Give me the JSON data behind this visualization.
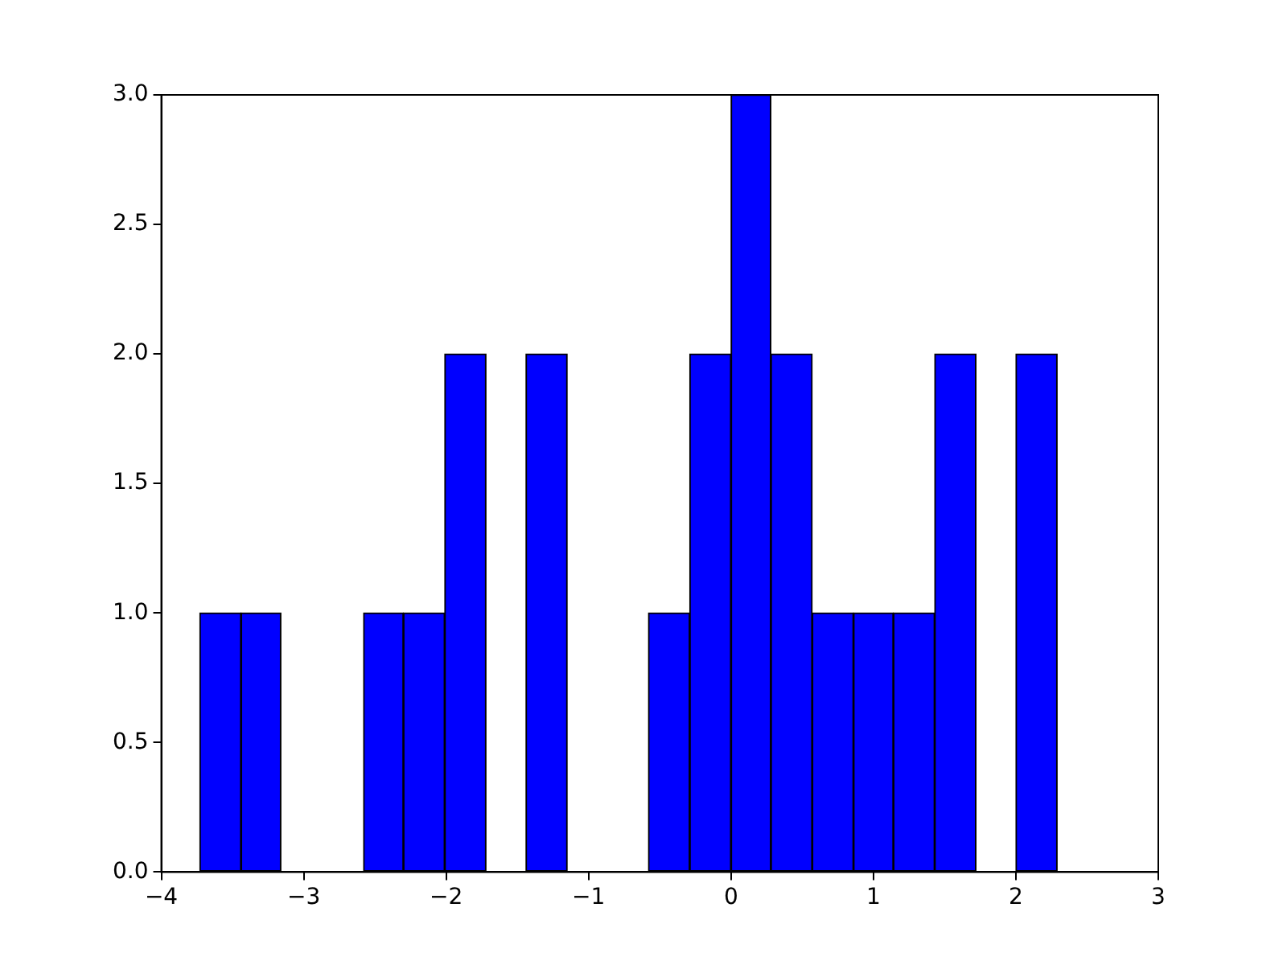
{
  "chart_data": {
    "type": "histogram",
    "bins": [
      -3.73,
      -3.44,
      -3.16,
      -2.87,
      -2.58,
      -2.3,
      -2.01,
      -1.72,
      -1.44,
      -1.15,
      -0.86,
      -0.58,
      -0.29,
      0.0,
      0.28,
      0.57,
      0.86,
      1.14,
      1.43,
      1.72,
      2.0,
      2.29
    ],
    "values": [
      1,
      1,
      0,
      0,
      1,
      1,
      2,
      0,
      2,
      0,
      0,
      1,
      2,
      3,
      2,
      1,
      1,
      1,
      2,
      0,
      2
    ],
    "color": "#0000ff",
    "xlim": [
      -4,
      3
    ],
    "ylim": [
      0,
      3
    ],
    "xticks": [
      {
        "value": -4,
        "label": "−4"
      },
      {
        "value": -3,
        "label": "−3"
      },
      {
        "value": -2,
        "label": "−2"
      },
      {
        "value": -1,
        "label": "−1"
      },
      0,
      1,
      2,
      3
    ],
    "yticks": [
      {
        "value": 0,
        "label": "0.0"
      },
      {
        "value": 0.5,
        "label": "0.5"
      },
      {
        "value": 1,
        "label": "1.0"
      },
      {
        "value": 1.5,
        "label": "1.5"
      },
      {
        "value": 2,
        "label": "2.0"
      },
      {
        "value": 2.5,
        "label": "2.5"
      },
      {
        "value": 3,
        "label": "3.0"
      }
    ]
  }
}
